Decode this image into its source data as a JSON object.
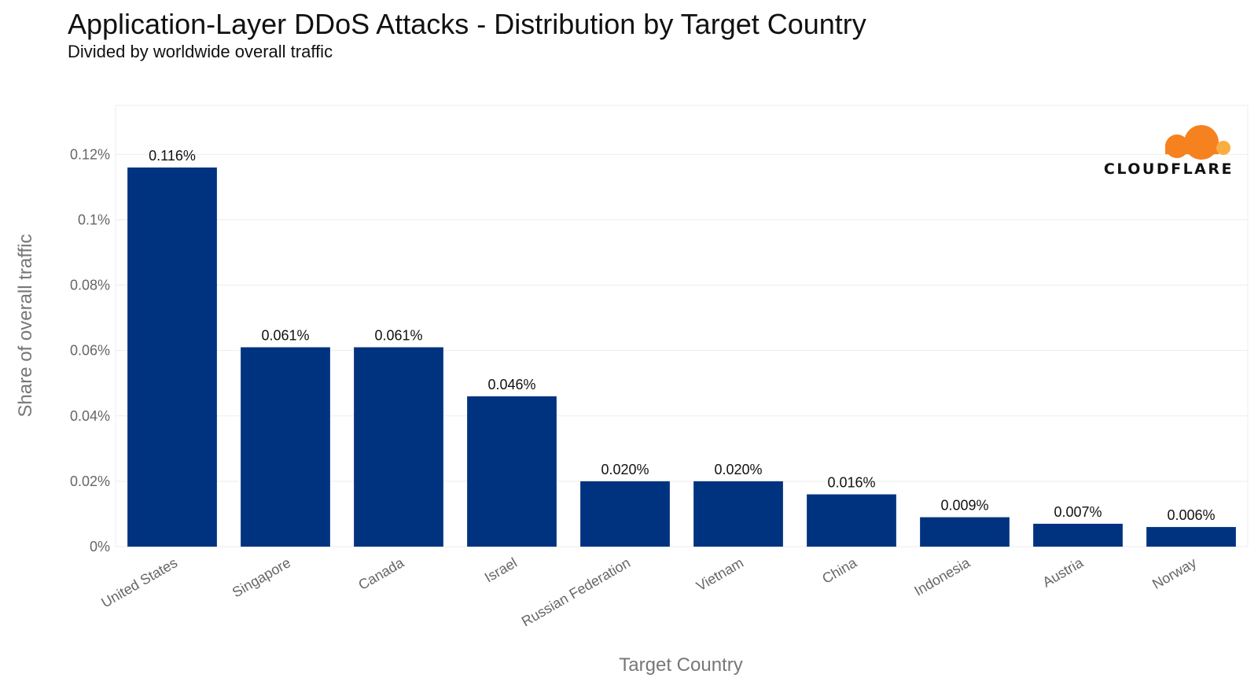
{
  "title": "Application-Layer DDoS Attacks - Distribution by Target Country",
  "subtitle": "Divided by worldwide overall traffic",
  "logo": {
    "text": "CLOUDFLARE",
    "icon": "cloud-icon",
    "color": "#F6821F",
    "color_light": "#FBAD41"
  },
  "colors": {
    "bar": "#00337F",
    "grid": "#EDEDED"
  },
  "chart_data": {
    "type": "bar",
    "title": "Application-Layer DDoS Attacks - Distribution by Target Country",
    "subtitle": "Divided by worldwide overall traffic",
    "xlabel": "Target Country",
    "ylabel": "Share of overall traffic",
    "categories": [
      "United States",
      "Singapore",
      "Canada",
      "Israel",
      "Russian Federation",
      "Vietnam",
      "China",
      "Indonesia",
      "Austria",
      "Norway"
    ],
    "values": [
      0.116,
      0.061,
      0.061,
      0.046,
      0.02,
      0.02,
      0.016,
      0.009,
      0.007,
      0.006
    ],
    "value_labels": [
      "0.116%",
      "0.061%",
      "0.061%",
      "0.046%",
      "0.020%",
      "0.020%",
      "0.016%",
      "0.009%",
      "0.007%",
      "0.006%"
    ],
    "yticks": [
      0,
      0.02,
      0.04,
      0.06,
      0.08,
      0.1,
      0.12
    ],
    "ytick_labels": [
      "0%",
      "0.02%",
      "0.04%",
      "0.06%",
      "0.08%",
      "0.1%",
      "0.12%"
    ],
    "ylim": [
      0,
      0.135
    ],
    "grid": true
  }
}
